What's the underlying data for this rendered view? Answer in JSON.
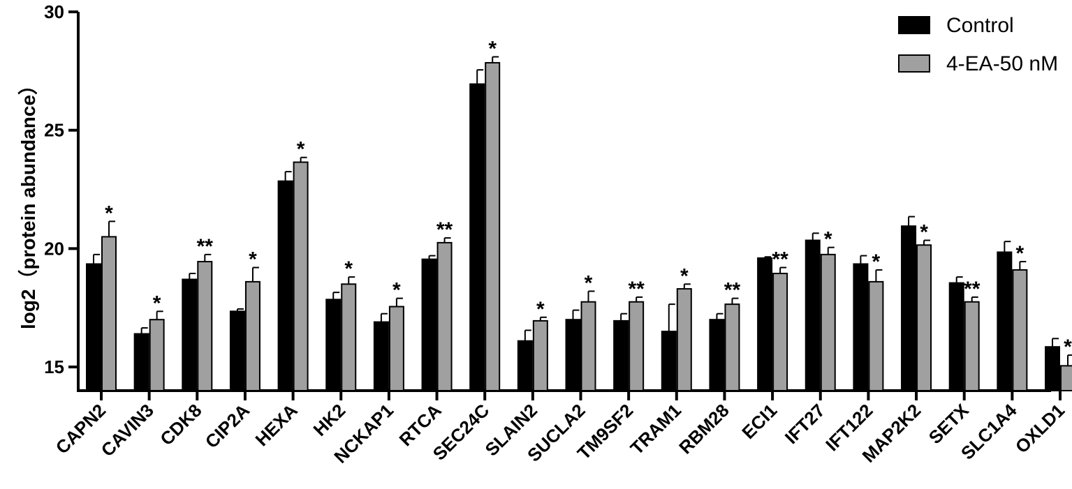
{
  "chart_data": {
    "type": "bar",
    "title": "",
    "xlabel": "",
    "ylabel": "log2（protein abundance）",
    "ylim": [
      14,
      30
    ],
    "yticks": [
      15,
      20,
      25,
      30
    ],
    "categories": [
      "CAPN2",
      "CAVIN3",
      "CDK8",
      "CIP2A",
      "HEXA",
      "HK2",
      "NCKAP1",
      "RTCA",
      "SEC24C",
      "SLAIN2",
      "SUCLA2",
      "TM9SF2",
      "TRAM1",
      "RBM28",
      "ECI1",
      "IFT27",
      "IFT122",
      "MAP2K2",
      "SETX",
      "SLC1A4",
      "OXLD1"
    ],
    "series": [
      {
        "name": "Control",
        "color": "#000000",
        "values": [
          19.35,
          16.4,
          18.7,
          17.35,
          22.85,
          17.85,
          16.9,
          19.55,
          26.95,
          16.1,
          17.0,
          16.95,
          16.5,
          17.0,
          19.6,
          20.35,
          19.35,
          20.95,
          18.55,
          19.85,
          15.85
        ],
        "errors": [
          0.4,
          0.25,
          0.25,
          0.1,
          0.4,
          0.3,
          0.35,
          0.15,
          0.6,
          0.45,
          0.4,
          0.3,
          1.15,
          0.25,
          0.05,
          0.3,
          0.35,
          0.4,
          0.25,
          0.45,
          0.35
        ]
      },
      {
        "name": "4-EA-50 nM",
        "color": "#a0a0a0",
        "values": [
          20.5,
          17.0,
          19.45,
          18.6,
          23.65,
          18.5,
          17.55,
          20.25,
          27.85,
          16.95,
          17.75,
          17.75,
          18.3,
          17.65,
          18.95,
          19.75,
          18.6,
          20.15,
          17.75,
          19.1,
          15.05
        ],
        "errors": [
          0.65,
          0.35,
          0.3,
          0.6,
          0.2,
          0.3,
          0.35,
          0.2,
          0.25,
          0.15,
          0.45,
          0.2,
          0.2,
          0.25,
          0.25,
          0.3,
          0.5,
          0.2,
          0.2,
          0.35,
          0.45
        ]
      }
    ],
    "significance": [
      "*",
      "*",
      "**",
      "*",
      "*",
      "*",
      "*",
      "**",
      "*",
      "*",
      "*",
      "**",
      "*",
      "**",
      "**",
      "*",
      "*",
      "*",
      "**",
      "*",
      "*"
    ],
    "legend_position": "top-right",
    "grid": false
  }
}
